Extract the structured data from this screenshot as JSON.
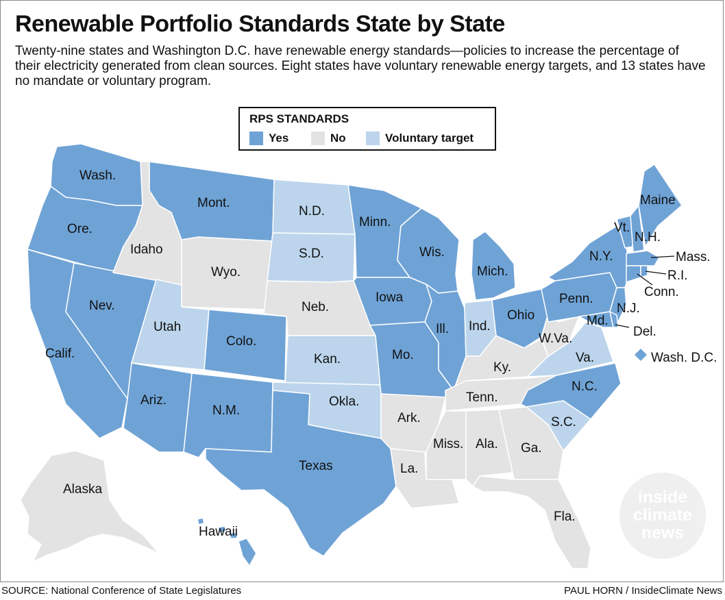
{
  "title": "Renewable Portfolio Standards State by State",
  "subtitle": "Twenty-nine states and Washington D.C. have renewable energy standards—policies to increase the percentage of their electricity generated from clean sources. Eight states have voluntary renewable energy targets, and 13 states have no mandate or voluntary program.",
  "legend": {
    "title": "RPS STANDARDS",
    "items": [
      {
        "label": "Yes",
        "color": "#6fa3d6"
      },
      {
        "label": "No",
        "color": "#e3e3e3"
      },
      {
        "label": "Voluntary target",
        "color": "#bcd5ec"
      }
    ]
  },
  "colors": {
    "yes": "#6fa3d6",
    "no": "#e3e3e3",
    "voluntary": "#bcd5ec",
    "border": "#ffffff"
  },
  "states": {
    "wash": {
      "label": "Wash.",
      "status": "Yes"
    },
    "ore": {
      "label": "Ore.",
      "status": "Yes"
    },
    "calif": {
      "label": "Calif.",
      "status": "Yes"
    },
    "nev": {
      "label": "Nev.",
      "status": "Yes"
    },
    "idaho": {
      "label": "Idaho",
      "status": "No"
    },
    "mont": {
      "label": "Mont.",
      "status": "Yes"
    },
    "wyo": {
      "label": "Wyo.",
      "status": "No"
    },
    "utah": {
      "label": "Utah",
      "status": "Voluntary target"
    },
    "colo": {
      "label": "Colo.",
      "status": "Yes"
    },
    "ariz": {
      "label": "Ariz.",
      "status": "Yes"
    },
    "nm": {
      "label": "N.M.",
      "status": "Yes"
    },
    "nd": {
      "label": "N.D.",
      "status": "Voluntary target"
    },
    "sd": {
      "label": "S.D.",
      "status": "Voluntary target"
    },
    "neb": {
      "label": "Neb.",
      "status": "No"
    },
    "kan": {
      "label": "Kan.",
      "status": "Voluntary target"
    },
    "okla": {
      "label": "Okla.",
      "status": "Voluntary target"
    },
    "texas": {
      "label": "Texas",
      "status": "Yes"
    },
    "minn": {
      "label": "Minn.",
      "status": "Yes"
    },
    "iowa": {
      "label": "Iowa",
      "status": "Yes"
    },
    "mo": {
      "label": "Mo.",
      "status": "Yes"
    },
    "ark": {
      "label": "Ark.",
      "status": "No"
    },
    "la": {
      "label": "La.",
      "status": "No"
    },
    "wis": {
      "label": "Wis.",
      "status": "Yes"
    },
    "ill": {
      "label": "Ill.",
      "status": "Yes"
    },
    "mich": {
      "label": "Mich.",
      "status": "Yes"
    },
    "ind": {
      "label": "Ind.",
      "status": "Voluntary target"
    },
    "ohio": {
      "label": "Ohio",
      "status": "Yes"
    },
    "ky": {
      "label": "Ky.",
      "status": "No"
    },
    "tenn": {
      "label": "Tenn.",
      "status": "No"
    },
    "miss": {
      "label": "Miss.",
      "status": "No"
    },
    "ala": {
      "label": "Ala.",
      "status": "No"
    },
    "ga": {
      "label": "Ga.",
      "status": "No"
    },
    "fla": {
      "label": "Fla.",
      "status": "No"
    },
    "sc": {
      "label": "S.C.",
      "status": "Voluntary target"
    },
    "nc": {
      "label": "N.C.",
      "status": "Yes"
    },
    "va": {
      "label": "Va.",
      "status": "Voluntary target"
    },
    "wva": {
      "label": "W.Va.",
      "status": "No"
    },
    "penn": {
      "label": "Penn.",
      "status": "Yes"
    },
    "ny": {
      "label": "N.Y.",
      "status": "Yes"
    },
    "vt": {
      "label": "Vt.",
      "status": "Yes"
    },
    "nh": {
      "label": "N.H.",
      "status": "Yes"
    },
    "maine": {
      "label": "Maine",
      "status": "Yes"
    },
    "mass": {
      "label": "Mass.",
      "status": "Yes"
    },
    "ri": {
      "label": "R.I.",
      "status": "Yes"
    },
    "conn": {
      "label": "Conn.",
      "status": "Yes"
    },
    "nj": {
      "label": "N.J.",
      "status": "Yes"
    },
    "del": {
      "label": "Del.",
      "status": "Yes"
    },
    "md": {
      "label": "Md.",
      "status": "Yes"
    },
    "dc": {
      "label": "Wash. D.C.",
      "status": "Yes"
    },
    "alaska": {
      "label": "Alaska",
      "status": "No"
    },
    "hawaii": {
      "label": "Hawaii",
      "status": "Yes"
    }
  },
  "source": "SOURCE: National Conference of State Legislatures",
  "credit": "PAUL HORN / InsideClimate News",
  "watermark": {
    "line1": "inside",
    "line2": "climate",
    "line3": "news"
  }
}
